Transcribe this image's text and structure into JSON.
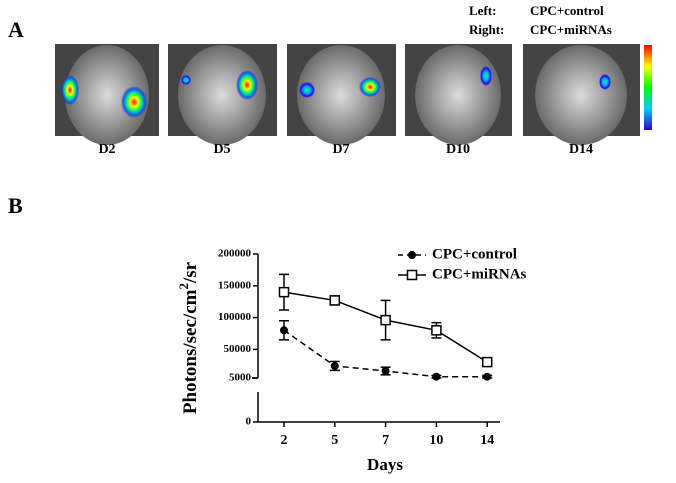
{
  "panels": {
    "a": "A",
    "b": "B"
  },
  "header": {
    "left_key": "Left:",
    "left_value": "CPC+control",
    "right_key": "Right:",
    "right_value": "CPC+miRNAs"
  },
  "images": [
    "D2",
    "D5",
    "D7",
    "D10",
    "D14"
  ],
  "chart_data": {
    "type": "line",
    "categories": [
      "2",
      "5",
      "7",
      "10",
      "14"
    ],
    "xlabel": "Days",
    "ylabel": [
      "Photons/sec/cm",
      "2",
      "/sr"
    ],
    "y_segments": [
      {
        "ylim": [
          0,
          5000
        ],
        "yticks": [
          0,
          5000
        ]
      },
      {
        "ylim": [
          5000,
          200000
        ],
        "yticks": [
          50000,
          100000,
          150000,
          200000
        ]
      }
    ],
    "series": [
      {
        "name": "CPC+control",
        "color": "#000000",
        "dash": true,
        "marker": "circle",
        "values": [
          80000,
          24000,
          16000,
          7000,
          7000
        ],
        "errors": [
          15000,
          7000,
          6000,
          2000,
          2000
        ]
      },
      {
        "name": "CPC+miRNAs",
        "color": "#000000",
        "dash": false,
        "marker": "square",
        "values": [
          140000,
          127000,
          96000,
          80000,
          30000
        ],
        "errors": [
          28000,
          7000,
          31000,
          12000,
          3000
        ]
      }
    ],
    "legend": "upper right"
  }
}
